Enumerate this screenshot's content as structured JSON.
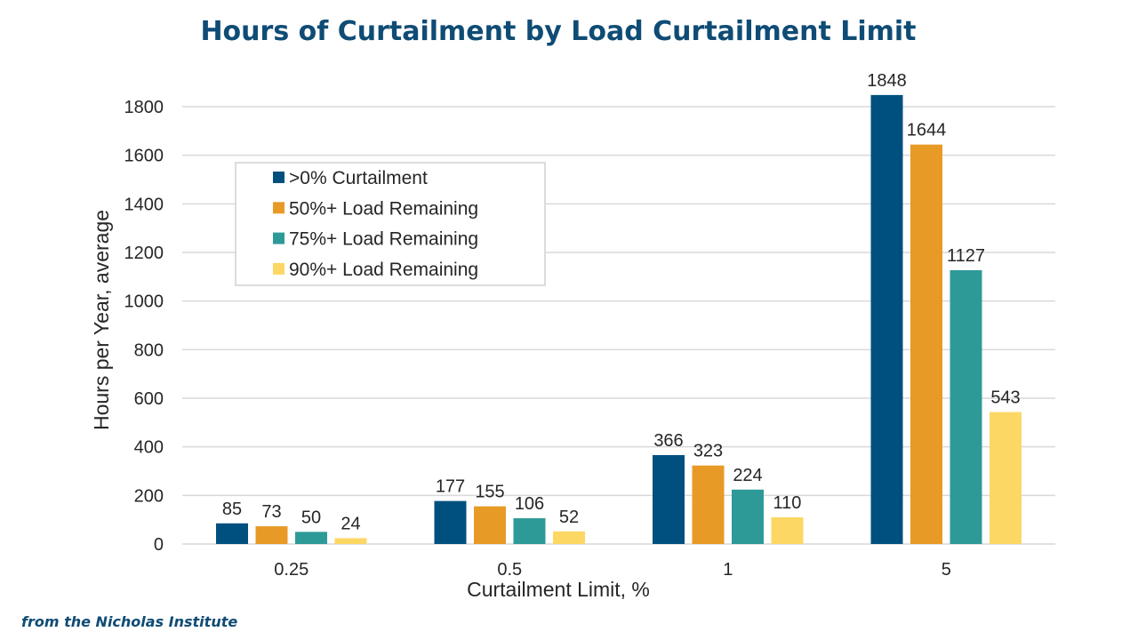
{
  "chart_data": {
    "type": "bar",
    "title": "Hours of Curtailment by Load Curtailment Limit",
    "xlabel": "Curtailment Limit, %",
    "ylabel": "Hours per Year, average",
    "ylim": [
      0,
      1800
    ],
    "yticks": [
      "0",
      "200",
      "400",
      "600",
      "800",
      "1000",
      "1200",
      "1400",
      "1600",
      "1800"
    ],
    "grid": true,
    "legend_position": "top-left",
    "categories": [
      "0.25",
      "0.5",
      "1",
      "5"
    ],
    "series": [
      {
        "name": ">0% Curtailment",
        "color": "#00507f",
        "values": [
          85,
          177,
          366,
          1848
        ]
      },
      {
        "name": "50%+ Load Remaining",
        "color": "#e89a26",
        "values": [
          73,
          155,
          323,
          1644
        ]
      },
      {
        "name": "75%+ Load Remaining",
        "color": "#2e9a98",
        "values": [
          50,
          106,
          224,
          1127
        ]
      },
      {
        "name": "90%+ Load Remaining",
        "color": "#fcd764",
        "values": [
          24,
          52,
          110,
          543
        ]
      }
    ]
  },
  "source_note": "from the Nicholas Institute"
}
